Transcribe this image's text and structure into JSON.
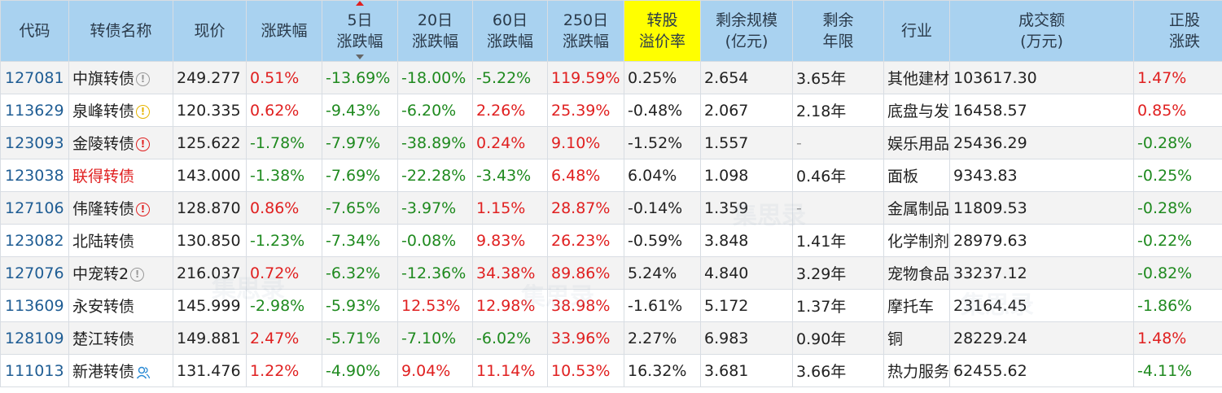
{
  "headers": {
    "code": "代码",
    "name": "转债名称",
    "price": "现价",
    "change": "涨跌幅",
    "chg5_l1": "5日",
    "chg5_l2": "涨跌幅",
    "chg20_l1": "20日",
    "chg20_l2": "涨跌幅",
    "chg60_l1": "60日",
    "chg60_l2": "涨跌幅",
    "chg250_l1": "250日",
    "chg250_l2": "涨跌幅",
    "premium_l1": "转股",
    "premium_l2": "溢价率",
    "scale_l1": "剩余规模",
    "scale_l2": "(亿元)",
    "years_l1": "剩余",
    "years_l2": "年限",
    "industry": "行业",
    "volume_l1": "成交额",
    "volume_l2": "(万元)",
    "stock_l1": "正股",
    "stock_l2": "涨跌"
  },
  "colors": {
    "up": "#e02020",
    "down": "#1f8a1f",
    "header_bg": "#a9d2f0",
    "highlight": "#ffff00",
    "code": "#1f5d94"
  },
  "rows": [
    {
      "code": "127081",
      "name": "中旗转债",
      "icon": "info-gray",
      "price": "249.277",
      "change": "0.51%",
      "chg5": "-13.69%",
      "chg20": "-18.00%",
      "chg60": "-5.22%",
      "chg250": "119.59%",
      "premium": "0.25%",
      "scale": "2.654",
      "years": "3.65年",
      "industry": "其他建材",
      "volume": "103617.30",
      "stock": "1.47%"
    },
    {
      "code": "113629",
      "name": "泉峰转债",
      "icon": "info-yellow",
      "price": "120.335",
      "change": "0.62%",
      "chg5": "-9.43%",
      "chg20": "-6.20%",
      "chg60": "2.26%",
      "chg250": "25.39%",
      "premium": "-0.48%",
      "scale": "2.067",
      "years": "2.18年",
      "industry": "底盘与发动机系统",
      "volume": "16458.57",
      "stock": "0.85%"
    },
    {
      "code": "123093",
      "name": "金陵转债",
      "icon": "alert-red",
      "price": "125.622",
      "change": "-1.78%",
      "chg5": "-7.97%",
      "chg20": "-38.89%",
      "chg60": "0.24%",
      "chg250": "9.10%",
      "premium": "-1.52%",
      "scale": "1.557",
      "years": "-",
      "industry": "娱乐用品",
      "volume": "25436.29",
      "stock": "-0.28%"
    },
    {
      "code": "123038",
      "name": "联得转债",
      "icon": "",
      "price": "143.000",
      "change": "-1.38%",
      "chg5": "-7.69%",
      "chg20": "-22.28%",
      "chg60": "-3.43%",
      "chg250": "6.48%",
      "premium": "6.04%",
      "scale": "1.098",
      "years": "0.46年",
      "industry": "面板",
      "volume": "9343.83",
      "stock": "-0.25%"
    },
    {
      "code": "127106",
      "name": "伟隆转债",
      "icon": "alert-red",
      "price": "128.870",
      "change": "0.86%",
      "chg5": "-7.65%",
      "chg20": "-3.97%",
      "chg60": "1.15%",
      "chg250": "28.87%",
      "premium": "-0.14%",
      "scale": "1.359",
      "years": "-",
      "industry": "金属制品",
      "volume": "11809.53",
      "stock": "-0.28%"
    },
    {
      "code": "123082",
      "name": "北陆转债",
      "icon": "",
      "price": "130.850",
      "change": "-1.23%",
      "chg5": "-7.34%",
      "chg20": "-0.08%",
      "chg60": "9.83%",
      "chg250": "26.23%",
      "premium": "-0.59%",
      "scale": "3.848",
      "years": "1.41年",
      "industry": "化学制剂",
      "volume": "28979.63",
      "stock": "-0.22%"
    },
    {
      "code": "127076",
      "name": "中宠转2",
      "icon": "info-gray",
      "price": "216.037",
      "change": "0.72%",
      "chg5": "-6.32%",
      "chg20": "-12.36%",
      "chg60": "34.38%",
      "chg250": "89.86%",
      "premium": "5.24%",
      "scale": "4.840",
      "years": "3.29年",
      "industry": "宠物食品",
      "volume": "33237.12",
      "stock": "-0.82%"
    },
    {
      "code": "113609",
      "name": "永安转债",
      "icon": "",
      "price": "145.999",
      "change": "-2.98%",
      "chg5": "-5.93%",
      "chg20": "12.53%",
      "chg60": "12.98%",
      "chg250": "38.98%",
      "premium": "-1.61%",
      "scale": "5.172",
      "years": "1.37年",
      "industry": "摩托车",
      "volume": "23164.45",
      "stock": "-1.86%"
    },
    {
      "code": "128109",
      "name": "楚江转债",
      "icon": "",
      "price": "149.881",
      "change": "2.47%",
      "chg5": "-5.71%",
      "chg20": "-7.10%",
      "chg60": "-6.02%",
      "chg250": "33.96%",
      "premium": "2.27%",
      "scale": "6.983",
      "years": "0.90年",
      "industry": "铜",
      "volume": "28229.24",
      "stock": "1.48%"
    },
    {
      "code": "111013",
      "name": "新港转债",
      "icon": "user-blue",
      "price": "131.476",
      "change": "1.22%",
      "chg5": "-4.90%",
      "chg20": "9.04%",
      "chg60": "11.14%",
      "chg250": "10.53%",
      "premium": "16.32%",
      "scale": "3.681",
      "years": "3.66年",
      "industry": "热力服务",
      "volume": "62455.62",
      "stock": "-4.11%"
    }
  ],
  "watermark": "集思录"
}
